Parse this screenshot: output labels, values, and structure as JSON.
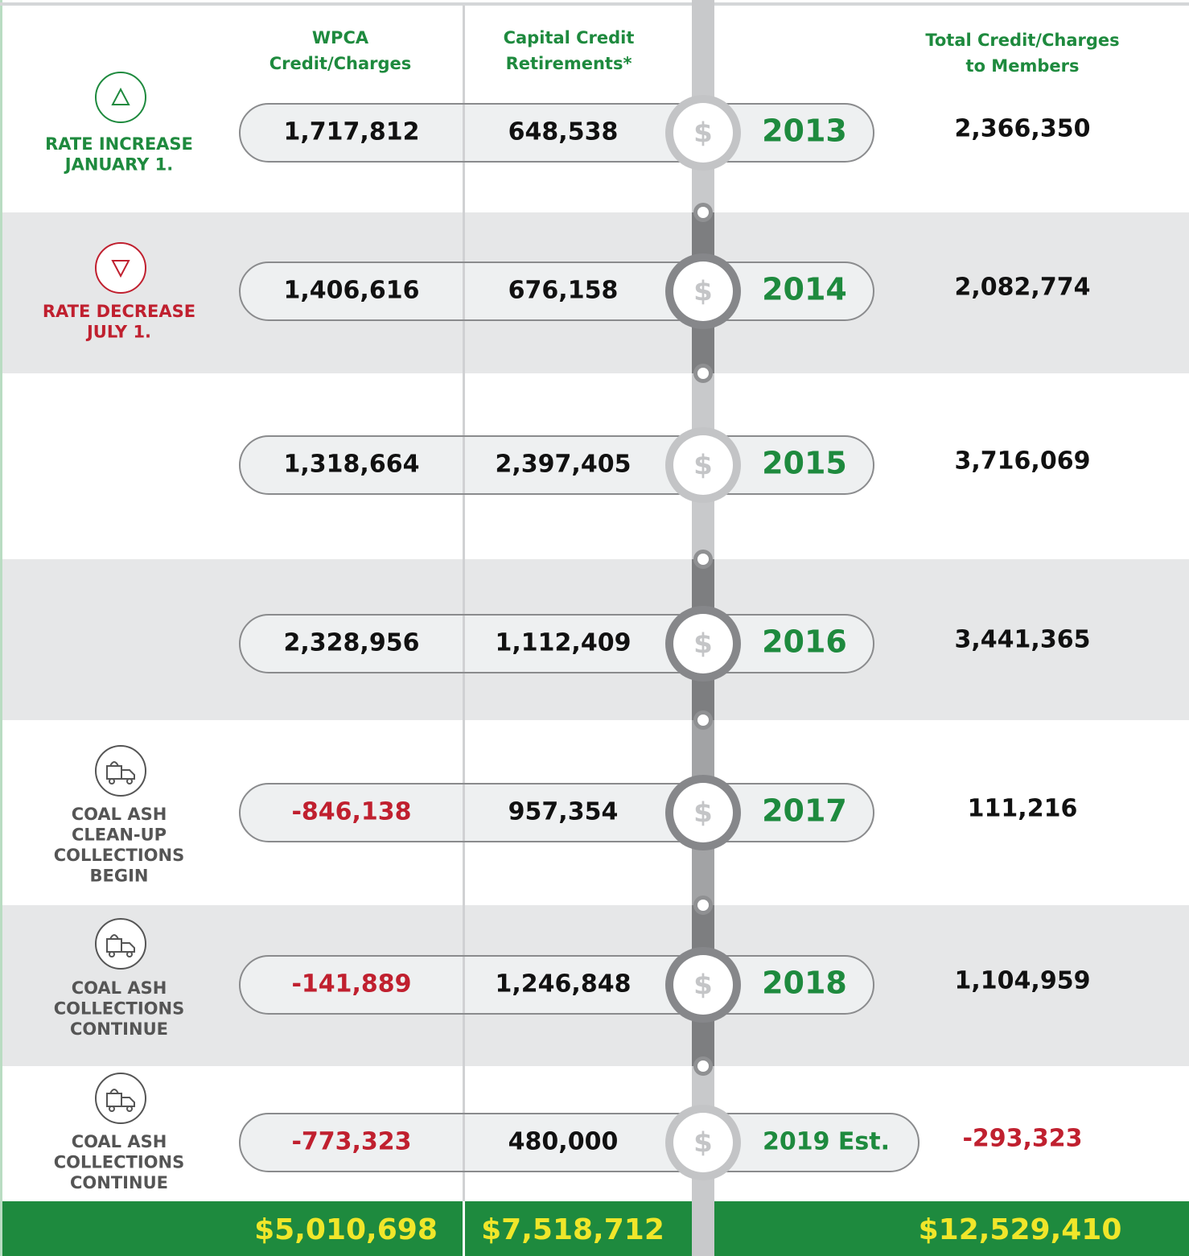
{
  "header": {
    "wpca": [
      "WPCA",
      "Credit/Charges"
    ],
    "capital": [
      "Capital Credit",
      "Retirements*"
    ],
    "total": [
      "Total Credit/Charges",
      "to Members"
    ]
  },
  "rows": [
    {
      "year": "2013",
      "wpca": "1,717,812",
      "capital": "648,538",
      "total": "2,366,350",
      "note": [
        "RATE INCREASE",
        "JANUARY 1."
      ]
    },
    {
      "year": "2014",
      "wpca": "1,406,616",
      "capital": "676,158",
      "total": "2,082,774",
      "note": [
        "RATE DECREASE",
        "JULY 1."
      ]
    },
    {
      "year": "2015",
      "wpca": "1,318,664",
      "capital": "2,397,405",
      "total": "3,716,069",
      "note": []
    },
    {
      "year": "2016",
      "wpca": "2,328,956",
      "capital": "1,112,409",
      "total": "3,441,365",
      "note": []
    },
    {
      "year": "2017",
      "wpca": "-846,138",
      "capital": "957,354",
      "total": "111,216",
      "note": [
        "COAL ASH",
        "CLEAN-UP",
        "COLLECTIONS",
        "BEGIN"
      ]
    },
    {
      "year": "2018",
      "wpca": "-141,889",
      "capital": "1,246,848",
      "total": "1,104,959",
      "note": [
        "COAL ASH",
        "COLLECTIONS",
        "CONTINUE"
      ]
    },
    {
      "year": "2019 Est.",
      "wpca": "-773,323",
      "capital": "480,000",
      "total": "-293,323",
      "note": [
        "COAL ASH",
        "COLLECTIONS",
        "CONTINUE"
      ]
    }
  ],
  "totals": {
    "wpca": "$5,010,698",
    "capital": "$7,518,712",
    "total": "$12,529,410"
  }
}
